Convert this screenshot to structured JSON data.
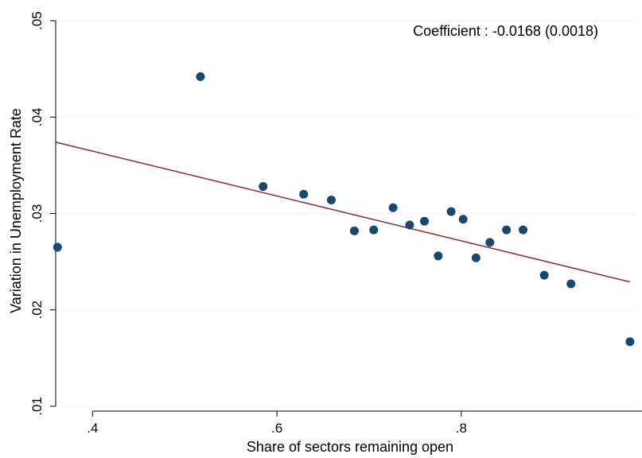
{
  "chart_data": {
    "type": "scatter",
    "xlabel": "Share of sectors remaining open",
    "ylabel": "Variation in Unemployment Rate",
    "xlim": [
      0.36,
      0.99
    ],
    "ylim": [
      0.0095,
      0.0505
    ],
    "x_ticks": [
      0.4,
      0.6,
      0.8,
      1.0
    ],
    "x_tick_labels": [
      ".4",
      ".6",
      ".8",
      "1"
    ],
    "y_ticks": [
      0.01,
      0.02,
      0.03,
      0.04,
      0.05
    ],
    "y_tick_labels": [
      ".01",
      ".02",
      ".03",
      ".04",
      ".05"
    ],
    "grid": "horizontal",
    "annotation": "Coefficient : -0.0168 (0.0018)",
    "colors": {
      "points": "#1a476f",
      "fit_line": "#90353b",
      "grid": "#eaf2f3"
    },
    "points": [
      {
        "x": 0.362,
        "y": 0.0265
      },
      {
        "x": 0.517,
        "y": 0.0442
      },
      {
        "x": 0.585,
        "y": 0.0328
      },
      {
        "x": 0.629,
        "y": 0.032
      },
      {
        "x": 0.659,
        "y": 0.0314
      },
      {
        "x": 0.684,
        "y": 0.0282
      },
      {
        "x": 0.705,
        "y": 0.0283
      },
      {
        "x": 0.726,
        "y": 0.0306
      },
      {
        "x": 0.744,
        "y": 0.0288
      },
      {
        "x": 0.76,
        "y": 0.0292
      },
      {
        "x": 0.775,
        "y": 0.0256
      },
      {
        "x": 0.789,
        "y": 0.0302
      },
      {
        "x": 0.802,
        "y": 0.0294
      },
      {
        "x": 0.816,
        "y": 0.0254
      },
      {
        "x": 0.831,
        "y": 0.027
      },
      {
        "x": 0.849,
        "y": 0.0283
      },
      {
        "x": 0.867,
        "y": 0.0283
      },
      {
        "x": 0.89,
        "y": 0.0236
      },
      {
        "x": 0.919,
        "y": 0.0227
      },
      {
        "x": 0.983,
        "y": 0.0167
      }
    ],
    "fit_line": {
      "x": [
        0.36,
        0.983
      ],
      "y": [
        0.0374,
        0.0229
      ]
    }
  }
}
